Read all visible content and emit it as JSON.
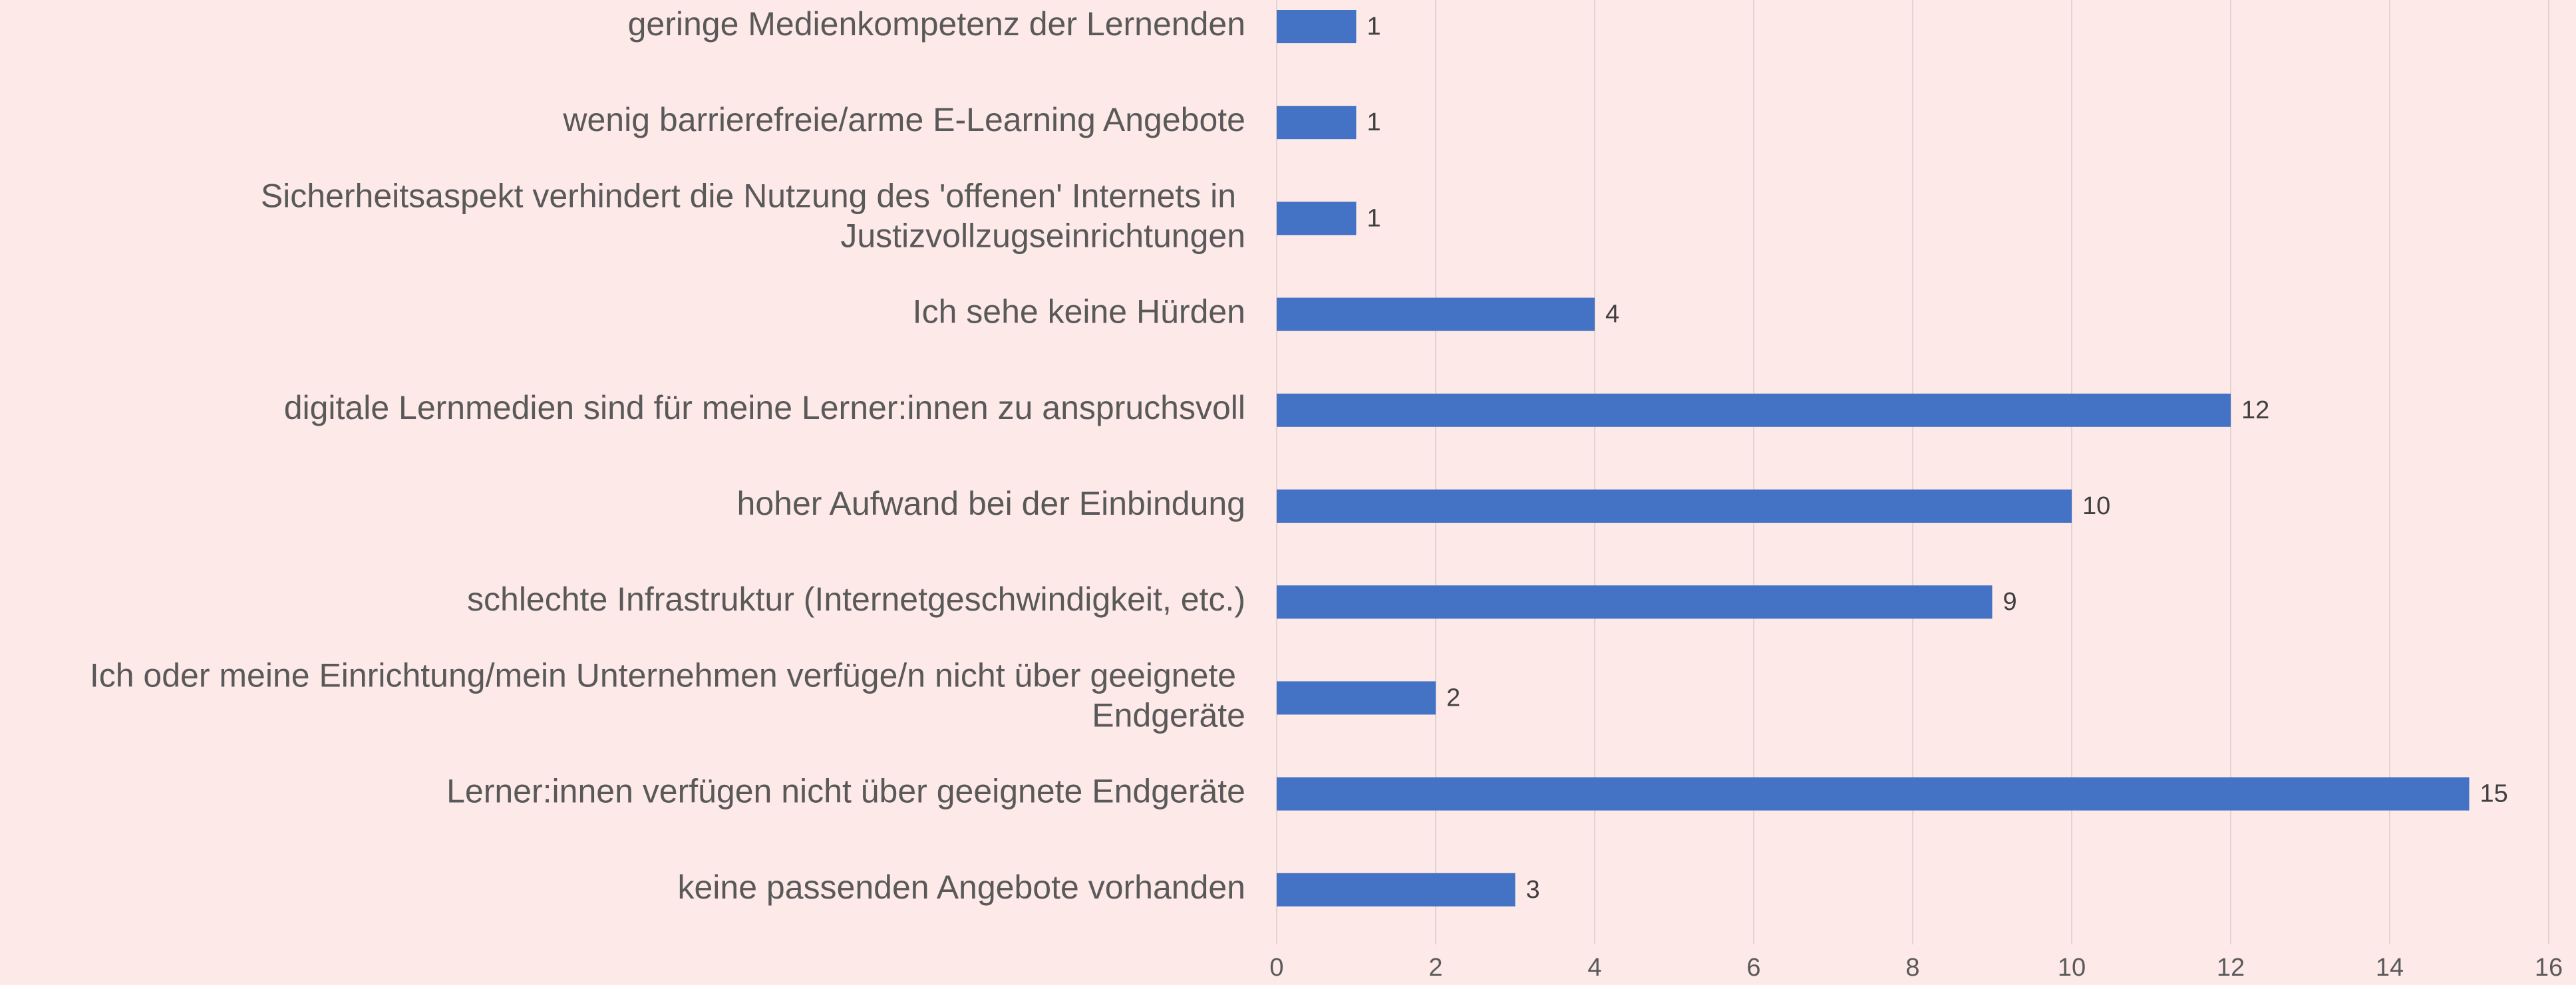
{
  "chart_data": {
    "type": "bar",
    "orientation": "horizontal",
    "categories": [
      "geringe Medienkompetenz der Lernenden",
      "wenig barrierefreie/arme E-Learning Angebote",
      "Sicherheitsaspekt verhindert die Nutzung des 'offenen' Internets in Justizvollzugseinrichtungen",
      "Ich sehe keine Hürden",
      "digitale Lernmedien sind für meine Lerner:innen zu anspruchsvoll",
      "hoher Aufwand bei der Einbindung",
      "schlechte Infrastruktur (Internetgeschwindigkeit, etc.)",
      "Ich oder meine Einrichtung/mein Unternehmen verfüge/n nicht über geeignete Endgeräte",
      "Lerner:innen verfügen nicht über geeignete Endgeräte",
      "keine passenden Angebote vorhanden"
    ],
    "values": [
      1,
      1,
      1,
      4,
      12,
      10,
      9,
      2,
      15,
      3
    ],
    "color": "#4472c4",
    "xlim": [
      0,
      16
    ],
    "xticks": [
      0,
      2,
      4,
      6,
      8,
      10,
      12,
      14,
      16
    ],
    "grid": true
  }
}
